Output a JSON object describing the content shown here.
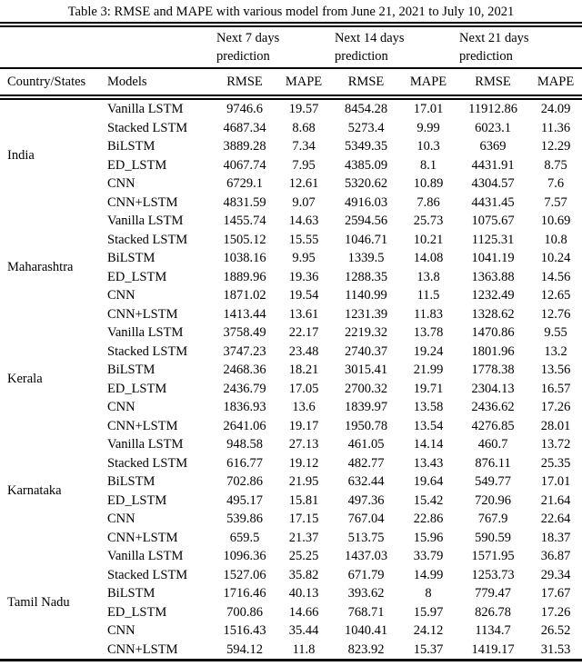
{
  "table": {
    "title": "Table 3: RMSE and MAPE with various model from June 21, 2021 to July 10, 2021",
    "group_headers": [
      {
        "line1": "Next 7 days",
        "line2": "prediction"
      },
      {
        "line1": "Next 14 days",
        "line2": "prediction"
      },
      {
        "line1": "Next 21 days",
        "line2": "prediction"
      }
    ],
    "column_headers": {
      "country": "Country/States",
      "models": "Models",
      "rmse": "RMSE",
      "mape": "MAPE"
    },
    "groups": [
      {
        "region": "India",
        "rows": [
          {
            "model": "Vanilla LSTM",
            "values": [
              "9746.6",
              "19.57",
              "8454.28",
              "17.01",
              "11912.86",
              "24.09"
            ]
          },
          {
            "model": "Stacked LSTM",
            "values": [
              "4687.34",
              "8.68",
              "5273.4",
              "9.99",
              "6023.1",
              "11.36"
            ]
          },
          {
            "model": "BiLSTM",
            "values": [
              "3889.28",
              "7.34",
              "5349.35",
              "10.3",
              "6369",
              "12.29"
            ]
          },
          {
            "model": "ED_LSTM",
            "values": [
              "4067.74",
              "7.95",
              "4385.09",
              "8.1",
              "4431.91",
              "8.75"
            ]
          },
          {
            "model": "CNN",
            "values": [
              "6729.1",
              "12.61",
              "5320.62",
              "10.89",
              "4304.57",
              "7.6"
            ]
          },
          {
            "model": "CNN+LSTM",
            "values": [
              "4831.59",
              "9.07",
              "4916.03",
              "7.86",
              "4431.45",
              "7.57"
            ]
          }
        ]
      },
      {
        "region": "Maharashtra",
        "rows": [
          {
            "model": "Vanilla LSTM",
            "values": [
              "1455.74",
              "14.63",
              "2594.56",
              "25.73",
              "1075.67",
              "10.69"
            ]
          },
          {
            "model": "Stacked LSTM",
            "values": [
              "1505.12",
              "15.55",
              "1046.71",
              "10.21",
              "1125.31",
              "10.8"
            ]
          },
          {
            "model": "BiLSTM",
            "values": [
              "1038.16",
              "9.95",
              "1339.5",
              "14.08",
              "1041.19",
              "10.24"
            ]
          },
          {
            "model": "ED_LSTM",
            "values": [
              "1889.96",
              "19.36",
              "1288.35",
              "13.8",
              "1363.88",
              "14.56"
            ]
          },
          {
            "model": "CNN",
            "values": [
              "1871.02",
              "19.54",
              "1140.99",
              "11.5",
              "1232.49",
              "12.65"
            ]
          },
          {
            "model": "CNN+LSTM",
            "values": [
              "1413.44",
              "13.61",
              "1231.39",
              "11.83",
              "1328.62",
              "12.76"
            ]
          }
        ]
      },
      {
        "region": "Kerala",
        "rows": [
          {
            "model": "Vanilla LSTM",
            "values": [
              "3758.49",
              "22.17",
              "2219.32",
              "13.78",
              "1470.86",
              "9.55"
            ]
          },
          {
            "model": "Stacked LSTM",
            "values": [
              "3747.23",
              "23.48",
              "2740.37",
              "19.24",
              "1801.96",
              "13.2"
            ]
          },
          {
            "model": "BiLSTM",
            "values": [
              "2468.36",
              "18.21",
              "3015.41",
              "21.99",
              "1778.38",
              "13.56"
            ]
          },
          {
            "model": "ED_LSTM",
            "values": [
              "2436.79",
              "17.05",
              "2700.32",
              "19.71",
              "2304.13",
              "16.57"
            ]
          },
          {
            "model": "CNN",
            "values": [
              "1836.93",
              "13.6",
              "1839.97",
              "13.58",
              "2436.62",
              "17.26"
            ]
          },
          {
            "model": "CNN+LSTM",
            "values": [
              "2641.06",
              "19.17",
              "1950.78",
              "13.54",
              "4276.85",
              "28.01"
            ]
          }
        ]
      },
      {
        "region": "Karnataka",
        "rows": [
          {
            "model": "Vanilla LSTM",
            "values": [
              "948.58",
              "27.13",
              "461.05",
              "14.14",
              "460.7",
              "13.72"
            ]
          },
          {
            "model": "Stacked LSTM",
            "values": [
              "616.77",
              "19.12",
              "482.77",
              "13.43",
              "876.11",
              "25.35"
            ]
          },
          {
            "model": "BiLSTM",
            "values": [
              "702.86",
              "21.95",
              "632.44",
              "19.64",
              "549.77",
              "17.01"
            ]
          },
          {
            "model": "ED_LSTM",
            "values": [
              "495.17",
              "15.81",
              "497.36",
              "15.42",
              "720.96",
              "21.64"
            ]
          },
          {
            "model": "CNN",
            "values": [
              "539.86",
              "17.15",
              "767.04",
              "22.86",
              "767.9",
              "22.64"
            ]
          },
          {
            "model": "CNN+LSTM",
            "values": [
              "659.5",
              "21.37",
              "513.75",
              "15.96",
              "590.59",
              "18.37"
            ]
          }
        ]
      },
      {
        "region": "Tamil Nadu",
        "rows": [
          {
            "model": "Vanilla LSTM",
            "values": [
              "1096.36",
              "25.25",
              "1437.03",
              "33.79",
              "1571.95",
              "36.87"
            ]
          },
          {
            "model": "Stacked LSTM",
            "values": [
              "1527.06",
              "35.82",
              "671.79",
              "14.99",
              "1253.73",
              "29.34"
            ]
          },
          {
            "model": "BiLSTM",
            "values": [
              "1716.46",
              "40.13",
              "393.62",
              "8",
              "779.47",
              "17.67"
            ]
          },
          {
            "model": "ED_LSTM",
            "values": [
              "700.86",
              "14.66",
              "768.71",
              "15.97",
              "826.78",
              "17.26"
            ]
          },
          {
            "model": "CNN",
            "values": [
              "1516.43",
              "35.44",
              "1040.41",
              "24.12",
              "1134.7",
              "26.52"
            ]
          },
          {
            "model": "CNN+LSTM",
            "values": [
              "594.12",
              "11.8",
              "823.92",
              "15.37",
              "1419.17",
              "31.53"
            ]
          }
        ]
      }
    ]
  }
}
